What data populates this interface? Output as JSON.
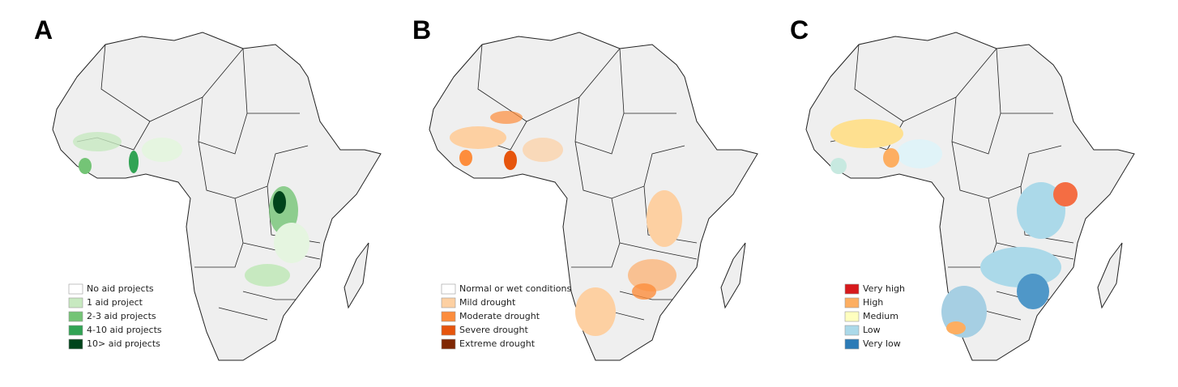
{
  "panels": [
    {
      "letter": "A",
      "legend": [
        {
          "label": "No aid projects",
          "color": "#ffffff"
        },
        {
          "label": "1 aid project",
          "color": "#c7e9c0"
        },
        {
          "label": "2-3 aid projects",
          "color": "#74c476"
        },
        {
          "label": "4-10 aid projects",
          "color": "#31a354"
        },
        {
          "label": "10> aid projects",
          "color": "#00441b"
        }
      ]
    },
    {
      "letter": "B",
      "legend": [
        {
          "label": "Normal or wet conditions",
          "color": "#ffffff"
        },
        {
          "label": "Mild drought",
          "color": "#fdd0a2"
        },
        {
          "label": "Moderate drought",
          "color": "#fd8d3c"
        },
        {
          "label": "Severe drought",
          "color": "#e6550d"
        },
        {
          "label": "Extreme drought",
          "color": "#7f2704"
        }
      ]
    },
    {
      "letter": "C",
      "legend": [
        {
          "label": "Very high",
          "color": "#d7191c"
        },
        {
          "label": "High",
          "color": "#fdae61"
        },
        {
          "label": "Medium",
          "color": "#ffffbf"
        },
        {
          "label": "Low",
          "color": "#abd9e9"
        },
        {
          "label": "Very low",
          "color": "#2c7bb6"
        }
      ]
    }
  ]
}
